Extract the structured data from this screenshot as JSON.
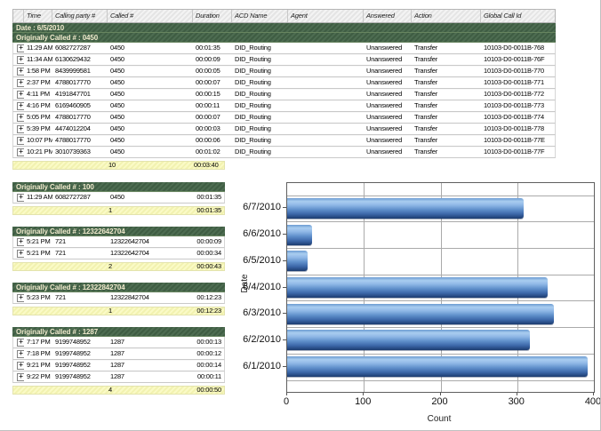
{
  "report": {
    "columns": [
      "",
      "Time",
      "Calling party #",
      "Called #",
      "Duration",
      "ACD Name",
      "Agent",
      "Answered",
      "Action",
      "Global Call Id"
    ],
    "date_band": "Date : 6/5/2010",
    "expand_icon": "+",
    "main_group": {
      "header": "Originally Called # : 0450",
      "rows": [
        {
          "time": "11:29 AM",
          "calling": "6082727287",
          "called": "0450",
          "duration": "00:01:35",
          "acd": "DID_Routing",
          "agent": "",
          "answered": "Unanswered",
          "action": "Transfer",
          "global_id": "10103-D0-0011B-768"
        },
        {
          "time": "11:34 AM",
          "calling": "6130629432",
          "called": "0450",
          "duration": "00:00:09",
          "acd": "DID_Routing",
          "agent": "",
          "answered": "Unanswered",
          "action": "Transfer",
          "global_id": "10103-D0-0011B-76F"
        },
        {
          "time": "1:58 PM",
          "calling": "8439999581",
          "called": "0450",
          "duration": "00:00:05",
          "acd": "DID_Routing",
          "agent": "",
          "answered": "Unanswered",
          "action": "Transfer",
          "global_id": "10103-D0-0011B-770"
        },
        {
          "time": "2:37 PM",
          "calling": "4788017770",
          "called": "0450",
          "duration": "00:00:07",
          "acd": "DID_Routing",
          "agent": "",
          "answered": "Unanswered",
          "action": "Transfer",
          "global_id": "10103-D0-0011B-771"
        },
        {
          "time": "4:11 PM",
          "calling": "4191847701",
          "called": "0450",
          "duration": "00:00:15",
          "acd": "DID_Routing",
          "agent": "",
          "answered": "Unanswered",
          "action": "Transfer",
          "global_id": "10103-D0-0011B-772"
        },
        {
          "time": "4:16 PM",
          "calling": "6169460905",
          "called": "0450",
          "duration": "00:00:11",
          "acd": "DID_Routing",
          "agent": "",
          "answered": "Unanswered",
          "action": "Transfer",
          "global_id": "10103-D0-0011B-773"
        },
        {
          "time": "5:05 PM",
          "calling": "4788017770",
          "called": "0450",
          "duration": "00:00:07",
          "acd": "DID_Routing",
          "agent": "",
          "answered": "Unanswered",
          "action": "Transfer",
          "global_id": "10103-D0-0011B-774"
        },
        {
          "time": "5:39 PM",
          "calling": "4474012204",
          "called": "0450",
          "duration": "00:00:03",
          "acd": "DID_Routing",
          "agent": "",
          "answered": "Unanswered",
          "action": "Transfer",
          "global_id": "10103-D0-0011B-778"
        },
        {
          "time": "10:07 PM",
          "calling": "4788017770",
          "called": "0450",
          "duration": "00:00:06",
          "acd": "DID_Routing",
          "agent": "",
          "answered": "Unanswered",
          "action": "Transfer",
          "global_id": "10103-D0-0011B-77E"
        },
        {
          "time": "10:21 PM",
          "calling": "3010739363",
          "called": "0450",
          "duration": "00:01:02",
          "acd": "DID_Routing",
          "agent": "",
          "answered": "Unanswered",
          "action": "Transfer",
          "global_id": "10103-D0-0011B-77F"
        }
      ],
      "summary_count": "10",
      "summary_duration": "00:03:40"
    },
    "groups": [
      {
        "header": "Originally Called # : 100",
        "rows": [
          {
            "time": "11:29 AM",
            "calling": "6082727287",
            "called": "0450",
            "duration": "00:01:35"
          }
        ],
        "summary_count": "1",
        "summary_duration": "00:01:35"
      },
      {
        "header": "Originally Called # : 12322642704",
        "rows": [
          {
            "time": "5:21 PM",
            "calling": "721",
            "called": "12322642704",
            "duration": "00:00:09"
          },
          {
            "time": "5:21 PM",
            "calling": "721",
            "called": "12322642704",
            "duration": "00:00:34"
          }
        ],
        "summary_count": "2",
        "summary_duration": "00:00:43"
      },
      {
        "header": "Originally Called # : 12322842704",
        "rows": [
          {
            "time": "5:23 PM",
            "calling": "721",
            "called": "12322842704",
            "duration": "00:12:23"
          }
        ],
        "summary_count": "1",
        "summary_duration": "00:12:23"
      },
      {
        "header": "Originally Called # : 1287",
        "rows": [
          {
            "time": "7:17 PM",
            "calling": "9199748952",
            "called": "1287",
            "duration": "00:00:13"
          },
          {
            "time": "7:18 PM",
            "calling": "9199748952",
            "called": "1287",
            "duration": "00:00:12"
          },
          {
            "time": "9:21 PM",
            "calling": "9199748952",
            "called": "1287",
            "duration": "00:00:14"
          },
          {
            "time": "9:22 PM",
            "calling": "9199748952",
            "called": "1287",
            "duration": "00:00:11"
          }
        ],
        "summary_count": "4",
        "summary_duration": "00:00:50"
      }
    ]
  },
  "chart_data": {
    "type": "bar",
    "orientation": "horizontal",
    "categories": [
      "6/7/2010",
      "6/6/2010",
      "6/5/2010",
      "6/4/2010",
      "6/3/2010",
      "6/2/2010",
      "6/1/2010"
    ],
    "values": [
      308,
      33,
      27,
      340,
      348,
      317,
      392
    ],
    "title": "",
    "xlabel": "Count",
    "ylabel": "Date",
    "xlim": [
      0,
      400
    ],
    "xticks": [
      0,
      100,
      200,
      300,
      400
    ],
    "grid": true,
    "legend": "none"
  },
  "colors": {
    "group_band_green": "#446248",
    "summary_yellow": "#f6f6bb",
    "bar_blue": "#5b8cc8",
    "bar_blue_dark": "#1d3c6e",
    "grid_gray": "#aaaaaa"
  }
}
